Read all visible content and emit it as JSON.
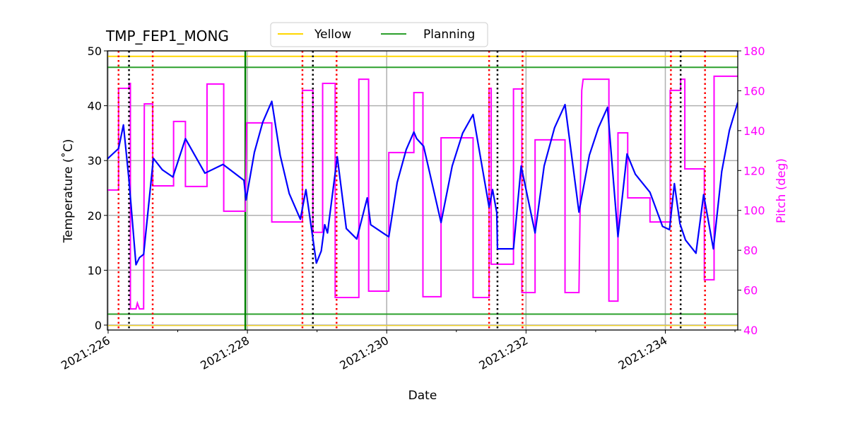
{
  "chart_data": {
    "type": "line",
    "title": "TMP_FEP1_MONG",
    "xlabel": "Date",
    "ylabel": "Temperature (˚C)",
    "ylabel_right": "Pitch (deg)",
    "xlim": [
      225.99,
      235.04
    ],
    "ylim": [
      -0.9,
      50
    ],
    "ylim_right": [
      40,
      180
    ],
    "x_ticks": [
      226,
      228,
      230,
      232,
      234
    ],
    "x_tick_labels": [
      "2021:226",
      "2021:228",
      "2021:230",
      "2021:232",
      "2021:234"
    ],
    "x_minor_ticks": [
      227,
      229,
      231,
      233,
      235
    ],
    "y_ticks": [
      0,
      10,
      20,
      30,
      40,
      50
    ],
    "y_ticks_right": [
      40,
      60,
      80,
      100,
      120,
      140,
      160,
      180
    ],
    "grid": true,
    "legend": {
      "placement": "top-center",
      "entries": [
        {
          "label": "Yellow",
          "color": "#ffd700"
        },
        {
          "label": "Planning",
          "color": "#2ca02c"
        }
      ]
    },
    "colors": {
      "temperature": "#0000ff",
      "pitch": "#ff00ff",
      "yellow": "#ffd700",
      "planning": "#2ca02c",
      "red_marker": "#ff0000",
      "black_marker": "#000000",
      "planning_vline": "#008000",
      "grid": "#b0b0b0"
    },
    "limits": {
      "yellow_hi": 49,
      "yellow_lo": -0.1,
      "planning_hi": 47,
      "planning_lo": 2
    },
    "planning_vline": 227.97,
    "red_dotted_lines": [
      226.15,
      226.64,
      228.79,
      229.28,
      231.47,
      231.95,
      234.08,
      234.57
    ],
    "black_dotted_lines": [
      226.3,
      228.94,
      231.59,
      234.22
    ],
    "temperature": [
      [
        225.99,
        30.3
      ],
      [
        226.15,
        32.2
      ],
      [
        226.22,
        36.5
      ],
      [
        226.3,
        26.4
      ],
      [
        226.4,
        11.0
      ],
      [
        226.45,
        12.3
      ],
      [
        226.51,
        12.9
      ],
      [
        226.65,
        30.4
      ],
      [
        226.78,
        28.3
      ],
      [
        226.93,
        27.0
      ],
      [
        227.11,
        34.0
      ],
      [
        227.39,
        27.7
      ],
      [
        227.65,
        29.3
      ],
      [
        227.95,
        26.4
      ],
      [
        227.98,
        22.8
      ],
      [
        228.1,
        31.5
      ],
      [
        228.22,
        37.0
      ],
      [
        228.35,
        40.8
      ],
      [
        228.47,
        31.0
      ],
      [
        228.6,
        24.0
      ],
      [
        228.76,
        19.3
      ],
      [
        228.84,
        24.7
      ],
      [
        228.99,
        11.3
      ],
      [
        229.06,
        13.5
      ],
      [
        229.11,
        18.3
      ],
      [
        229.15,
        16.8
      ],
      [
        229.29,
        30.7
      ],
      [
        229.42,
        17.6
      ],
      [
        229.57,
        15.7
      ],
      [
        229.72,
        23.2
      ],
      [
        229.77,
        18.3
      ],
      [
        229.98,
        16.5
      ],
      [
        230.03,
        16.1
      ],
      [
        230.15,
        26.0
      ],
      [
        230.28,
        32.0
      ],
      [
        230.39,
        35.2
      ],
      [
        230.43,
        34.0
      ],
      [
        230.53,
        32.6
      ],
      [
        230.78,
        18.7
      ],
      [
        230.94,
        29.0
      ],
      [
        231.09,
        35.0
      ],
      [
        231.24,
        38.4
      ],
      [
        231.47,
        21.5
      ],
      [
        231.52,
        24.7
      ],
      [
        231.58,
        20.5
      ],
      [
        231.59,
        13.9
      ],
      [
        231.82,
        13.9
      ],
      [
        231.93,
        29.0
      ],
      [
        232.13,
        16.8
      ],
      [
        232.26,
        29.0
      ],
      [
        232.41,
        36.0
      ],
      [
        232.56,
        40.2
      ],
      [
        232.76,
        20.6
      ],
      [
        232.91,
        31.0
      ],
      [
        233.04,
        36.0
      ],
      [
        233.17,
        39.7
      ],
      [
        233.32,
        16.1
      ],
      [
        233.45,
        31.2
      ],
      [
        233.57,
        27.5
      ],
      [
        233.78,
        24.2
      ],
      [
        233.96,
        18.0
      ],
      [
        234.06,
        17.4
      ],
      [
        234.13,
        25.8
      ],
      [
        234.21,
        18.5
      ],
      [
        234.29,
        15.5
      ],
      [
        234.44,
        13.1
      ],
      [
        234.55,
        23.8
      ],
      [
        234.69,
        13.9
      ],
      [
        234.81,
        28.0
      ],
      [
        234.92,
        35.5
      ],
      [
        235.04,
        40.6
      ]
    ],
    "pitch": [
      [
        225.99,
        110.2
      ],
      [
        226.15,
        110.2
      ],
      [
        226.15,
        161.2
      ],
      [
        226.3,
        161.2
      ],
      [
        226.3,
        163.7
      ],
      [
        226.32,
        163.7
      ],
      [
        226.32,
        50.6
      ],
      [
        226.4,
        50.6
      ],
      [
        226.42,
        53.5
      ],
      [
        226.45,
        50.6
      ],
      [
        226.51,
        50.6
      ],
      [
        226.52,
        153.4
      ],
      [
        226.64,
        153.4
      ],
      [
        226.64,
        112.3
      ],
      [
        226.94,
        112.3
      ],
      [
        226.94,
        144.6
      ],
      [
        227.11,
        144.6
      ],
      [
        227.11,
        112.0
      ],
      [
        227.42,
        112.0
      ],
      [
        227.42,
        163.4
      ],
      [
        227.66,
        163.4
      ],
      [
        227.66,
        99.6
      ],
      [
        227.97,
        99.6
      ],
      [
        227.99,
        143.9
      ],
      [
        228.35,
        143.9
      ],
      [
        228.35,
        94.2
      ],
      [
        228.79,
        94.2
      ],
      [
        228.79,
        160.2
      ],
      [
        228.94,
        160.2
      ],
      [
        228.94,
        89.0
      ],
      [
        229.08,
        89.0
      ],
      [
        229.08,
        163.7
      ],
      [
        229.26,
        163.7
      ],
      [
        229.26,
        56.3
      ],
      [
        229.6,
        56.3
      ],
      [
        229.6,
        165.8
      ],
      [
        229.74,
        165.8
      ],
      [
        229.74,
        59.5
      ],
      [
        230.03,
        59.5
      ],
      [
        230.03,
        129.0
      ],
      [
        230.39,
        129.0
      ],
      [
        230.39,
        159.1
      ],
      [
        230.52,
        159.1
      ],
      [
        230.52,
        56.7
      ],
      [
        230.78,
        56.7
      ],
      [
        230.78,
        136.4
      ],
      [
        231.24,
        136.4
      ],
      [
        231.24,
        56.3
      ],
      [
        231.47,
        56.3
      ],
      [
        231.47,
        161.2
      ],
      [
        231.5,
        161.2
      ],
      [
        231.5,
        73.0
      ],
      [
        231.82,
        73.0
      ],
      [
        231.82,
        160.9
      ],
      [
        231.94,
        160.9
      ],
      [
        231.94,
        58.8
      ],
      [
        232.13,
        58.8
      ],
      [
        232.13,
        135.4
      ],
      [
        232.56,
        135.4
      ],
      [
        232.56,
        58.8
      ],
      [
        232.76,
        58.8
      ],
      [
        232.8,
        160.2
      ],
      [
        232.82,
        165.8
      ],
      [
        233.19,
        165.8
      ],
      [
        233.19,
        54.5
      ],
      [
        233.32,
        54.5
      ],
      [
        233.32,
        138.9
      ],
      [
        233.46,
        138.9
      ],
      [
        233.46,
        106.3
      ],
      [
        233.78,
        106.3
      ],
      [
        233.78,
        94.2
      ],
      [
        234.07,
        94.2
      ],
      [
        234.07,
        160.2
      ],
      [
        234.22,
        160.2
      ],
      [
        234.22,
        165.8
      ],
      [
        234.28,
        165.8
      ],
      [
        234.28,
        120.8
      ],
      [
        234.56,
        120.8
      ],
      [
        234.56,
        65.2
      ],
      [
        234.7,
        65.2
      ],
      [
        234.7,
        167.3
      ],
      [
        235.04,
        167.3
      ]
    ]
  }
}
